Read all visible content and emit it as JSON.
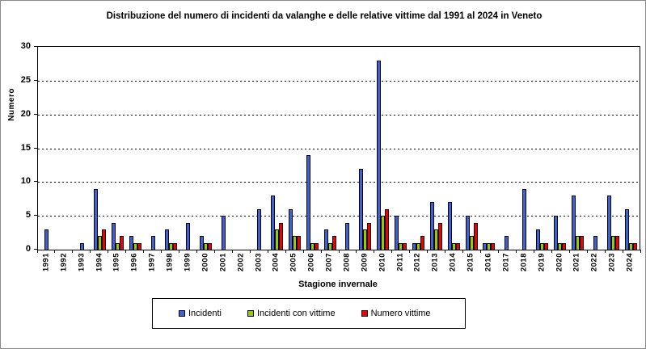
{
  "chart_data": {
    "type": "bar",
    "title": "Distribuzione del numero di incidenti da valanghe e delle relative vittime dal 1991 al 2024 in Veneto",
    "xlabel": "Stagione invernale",
    "ylabel": "Numero",
    "ylim": [
      0,
      30
    ],
    "yticks": [
      0,
      5,
      10,
      15,
      20,
      25,
      30
    ],
    "grid": "horizontal-dashed",
    "legend_position": "bottom",
    "categories": [
      "1991",
      "1992",
      "1993",
      "1994",
      "1995",
      "1996",
      "1997",
      "1998",
      "1999",
      "2000",
      "2001",
      "2002",
      "2003",
      "2004",
      "2005",
      "2006",
      "2007",
      "2008",
      "2009",
      "2010",
      "2011",
      "2012",
      "2013",
      "2014",
      "2015",
      "2016",
      "2017",
      "2018",
      "2019",
      "2020",
      "2021",
      "2022",
      "2023",
      "2024"
    ],
    "series": [
      {
        "key": "incidenti",
        "name": "Incidenti",
        "color": "#3A63D6",
        "values": [
          3,
          0,
          1,
          9,
          4,
          2,
          2,
          3,
          4,
          2,
          5,
          0,
          6,
          8,
          6,
          14,
          3,
          4,
          12,
          28,
          5,
          1,
          7,
          7,
          5,
          1,
          2,
          9,
          3,
          5,
          8,
          2,
          8,
          6
        ]
      },
      {
        "key": "incidenti-con-vittime",
        "name": "Incidenti con vittime",
        "color": "#99CC00",
        "values": [
          0,
          0,
          0,
          2,
          1,
          1,
          0,
          1,
          0,
          1,
          0,
          0,
          0,
          3,
          2,
          1,
          1,
          0,
          3,
          5,
          1,
          1,
          3,
          1,
          2,
          1,
          0,
          0,
          1,
          1,
          2,
          0,
          2,
          1
        ]
      },
      {
        "key": "numero-vittime",
        "name": "Numero vittime",
        "color": "#EE0000",
        "values": [
          0,
          0,
          0,
          3,
          2,
          1,
          0,
          1,
          0,
          1,
          0,
          0,
          0,
          4,
          2,
          1,
          2,
          0,
          4,
          6,
          1,
          2,
          4,
          1,
          4,
          1,
          0,
          0,
          1,
          1,
          2,
          0,
          2,
          1
        ]
      }
    ],
    "colors": {
      "plot_border": "#000000",
      "figure_border": "#8a8a8a",
      "background": "#ffffff",
      "text": "#000000"
    }
  }
}
